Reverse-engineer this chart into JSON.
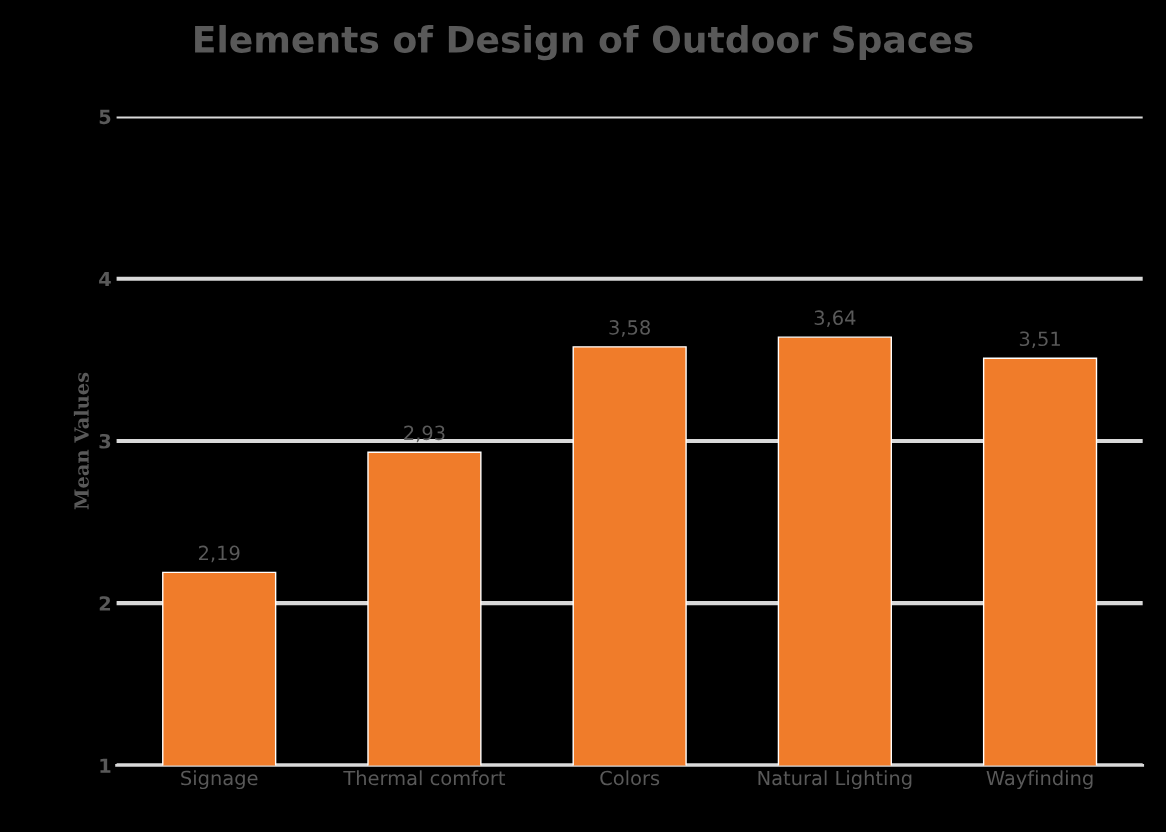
{
  "chart_data": {
    "type": "bar",
    "title": "Elements of Design of Outdoor Spaces",
    "ylabel": "Mean Values",
    "categories": [
      "Signage",
      "Thermal comfort",
      "Colors",
      "Natural Lighting",
      "Wayfinding"
    ],
    "values": [
      2.19,
      2.93,
      3.58,
      3.64,
      3.51
    ],
    "value_labels": [
      "2,19",
      "2,93",
      "3,58",
      "3,64",
      "3,51"
    ],
    "color": "#f07c2a",
    "ylim": [
      1,
      5
    ],
    "yticks": [
      1,
      2,
      3,
      4,
      5
    ],
    "grid": "y",
    "legend": false
  }
}
